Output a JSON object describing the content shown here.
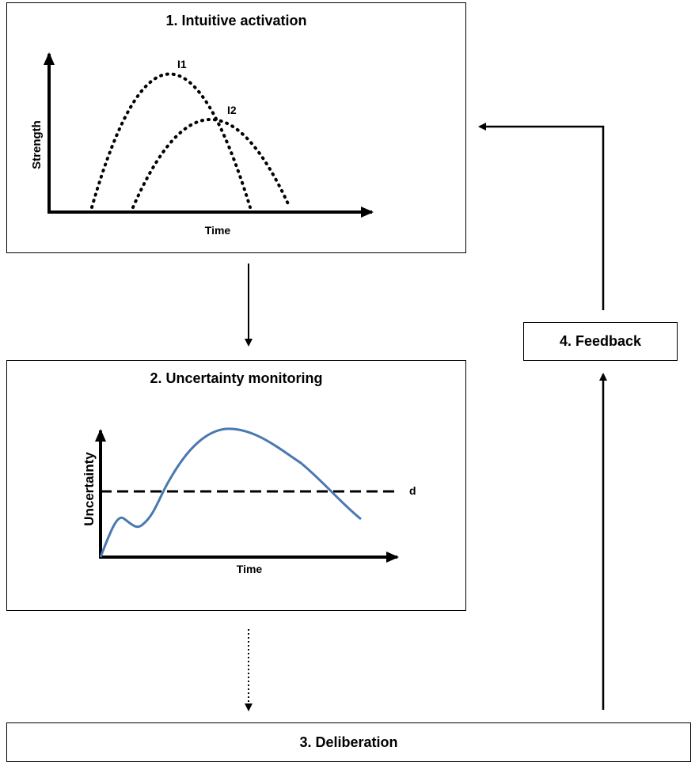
{
  "diagram": {
    "step1": {
      "title": "1. Intuitive activation",
      "y_axis_label": "Strength",
      "x_axis_label": "Time",
      "curve1_label": "I1",
      "curve2_label": "I2"
    },
    "step2": {
      "title": "2. Uncertainty monitoring",
      "y_axis_label": "Uncertainty",
      "x_axis_label": "Time",
      "threshold_label": "d"
    },
    "step3": {
      "title": "3. Deliberation"
    },
    "step4": {
      "title": "4. Feedback"
    },
    "colors": {
      "uncertainty_curve": "#4a78b0",
      "lines": "#000000"
    }
  }
}
